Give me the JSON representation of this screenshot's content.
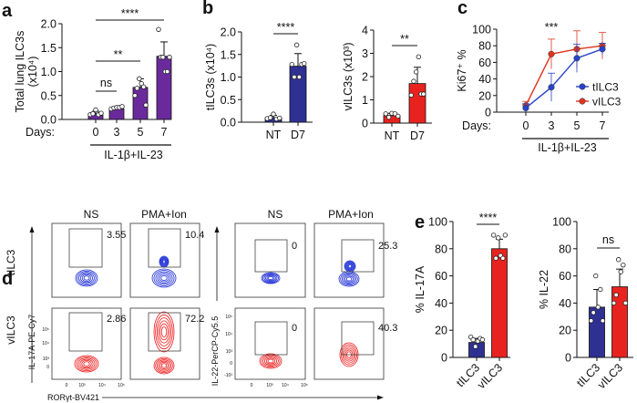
{
  "panels": {
    "a": "a",
    "b": "b",
    "c": "c",
    "d": "d",
    "e": "e"
  },
  "colors": {
    "purple": "#6a2a9c",
    "navy": "#2e3192",
    "red": "#e8231f",
    "line_blue": "#2743c9",
    "line_red": "#e0341f",
    "flow_blue": "#1f2fd6",
    "flow_red": "#ee1c1c"
  },
  "chart_data": [
    {
      "panel": "a",
      "type": "bar",
      "ylabel": "Total lung ILC3s",
      "ylabel2": "(x10⁴)",
      "xprefix": "Days:",
      "categories": [
        "0",
        "3",
        "5",
        "7"
      ],
      "treatment": "IL-1β+IL-23",
      "ylim": [
        0,
        2
      ],
      "yticks": [
        "0.0",
        "0.5",
        "1.0",
        "1.5",
        "2.0"
      ],
      "values": [
        0.12,
        0.22,
        0.67,
        1.32
      ],
      "errors": [
        0.05,
        0.03,
        0.18,
        0.3
      ],
      "points": [
        [
          0.1,
          0.12,
          0.2,
          0.1,
          0.13
        ],
        [
          0.22,
          0.24,
          0.25,
          0.25,
          0.27
        ],
        [
          0.5,
          0.65,
          0.85,
          0.75,
          0.68,
          0.3
        ],
        [
          1.88,
          1.3,
          1.3,
          1.0,
          1.0,
          1.3
        ]
      ],
      "color": "#6a2a9c",
      "significance": [
        {
          "from": 0,
          "to": 3,
          "label": "****"
        },
        {
          "from": 0,
          "to": 2,
          "label": "**"
        },
        {
          "from": 0,
          "to": 1,
          "label": "ns"
        }
      ]
    },
    {
      "panel": "b",
      "type": "bar",
      "ylabel": "tILC3s (x10⁴)",
      "categories": [
        "NT",
        "D7"
      ],
      "ylim": [
        0,
        2
      ],
      "yticks": [
        "0.0",
        "0.5",
        "1.0",
        "1.5",
        "2.0"
      ],
      "values": [
        0.1,
        1.24
      ],
      "errors": [
        0.05,
        0.28
      ],
      "points": [
        [
          0.08,
          0.1,
          0.18,
          0.07,
          0.09
        ],
        [
          1.28,
          1.0,
          1.71,
          1.0,
          1.28,
          1.3
        ]
      ],
      "color": "#2e3192",
      "significance": [
        {
          "from": 0,
          "to": 1,
          "label": "****"
        }
      ]
    },
    {
      "panel": "b",
      "type": "bar",
      "ylabel": "vILC3s (x10³)",
      "categories": [
        "NT",
        "D7"
      ],
      "ylim": [
        0,
        4
      ],
      "yticks": [
        "0",
        "1",
        "2",
        "3",
        "4"
      ],
      "values": [
        0.32,
        1.7
      ],
      "errors": [
        0.1,
        0.7
      ],
      "points": [
        [
          0.4,
          0.25,
          0.42,
          0.4,
          0.3
        ],
        [
          1.2,
          1.8,
          2.2,
          2.85,
          1.25,
          1.25
        ]
      ],
      "color": "#e8231f",
      "significance": [
        {
          "from": 0,
          "to": 1,
          "label": "**"
        }
      ]
    },
    {
      "panel": "c",
      "type": "line",
      "ylabel": "Ki67⁺ %",
      "xprefix": "Days:",
      "categories": [
        "0",
        "3",
        "5",
        "7"
      ],
      "treatment": "IL-1β+IL-23",
      "ylim": [
        0,
        100
      ],
      "yticks": [
        "0",
        "20",
        "40",
        "60",
        "80",
        "100"
      ],
      "series": [
        {
          "name": "tILC3",
          "values": [
            5,
            30,
            65,
            76
          ],
          "errors": [
            5,
            17,
            17,
            7
          ],
          "color": "#2743c9"
        },
        {
          "name": "vILC3",
          "values": [
            8,
            70,
            76,
            80
          ],
          "errors": [
            5,
            18,
            22,
            16
          ],
          "color": "#e0341f"
        }
      ],
      "legend": "right",
      "annotation": {
        "at": 1,
        "label": "***"
      }
    },
    {
      "panel": "e",
      "type": "bar",
      "ylabel": "% IL-17A",
      "categories": [
        "tILC3",
        "vILC3"
      ],
      "ylim": [
        0,
        100
      ],
      "yticks": [
        "0",
        "20",
        "40",
        "60",
        "80",
        "100"
      ],
      "values": [
        11,
        80
      ],
      "errors": [
        3,
        7
      ],
      "points": [
        [
          15,
          13,
          8,
          12,
          14,
          13
        ],
        [
          90,
          73,
          88,
          75,
          73,
          90
        ]
      ],
      "colors": [
        "#2e3192",
        "#e8231f"
      ],
      "significance": [
        {
          "from": 0,
          "to": 1,
          "label": "****"
        }
      ]
    },
    {
      "panel": "e",
      "type": "bar",
      "ylabel": "% IL-22",
      "categories": [
        "tILC3",
        "vILC3"
      ],
      "ylim": [
        0,
        100
      ],
      "yticks": [
        "0",
        "20",
        "40",
        "60",
        "80",
        "100"
      ],
      "values": [
        37,
        52
      ],
      "errors": [
        13,
        13
      ],
      "points": [
        [
          27,
          33,
          60,
          37,
          50,
          27
        ],
        [
          40,
          46,
          72,
          63,
          68,
          40
        ]
      ],
      "colors": [
        "#2e3192",
        "#e8231f"
      ],
      "significance": [
        {
          "from": 0,
          "to": 1,
          "label": "ns"
        }
      ]
    }
  ],
  "flow": {
    "columns": [
      "NS",
      "PMA+Ion",
      "NS",
      "PMA+Ion"
    ],
    "rows": [
      "tILC3",
      "vILC3"
    ],
    "gates": [
      [
        "3.55",
        "10.4",
        "0",
        "25.3"
      ],
      [
        "2.86",
        "72.2",
        "0",
        "40.3"
      ]
    ],
    "x_axis": "RORγt-BV421",
    "y_axis_left": "IL-17A-PE-Cy7",
    "y_axis_right": "IL-22-PerCP-Cy5.5",
    "y_ticks_left": [
      "10⁵",
      "10⁴",
      "10³",
      "0"
    ],
    "y_ticks_right": [
      "10⁵",
      "10⁴",
      "10³",
      "0",
      "-10³"
    ],
    "x_ticks": [
      "0",
      "10³",
      "10⁴",
      "10⁵"
    ]
  }
}
